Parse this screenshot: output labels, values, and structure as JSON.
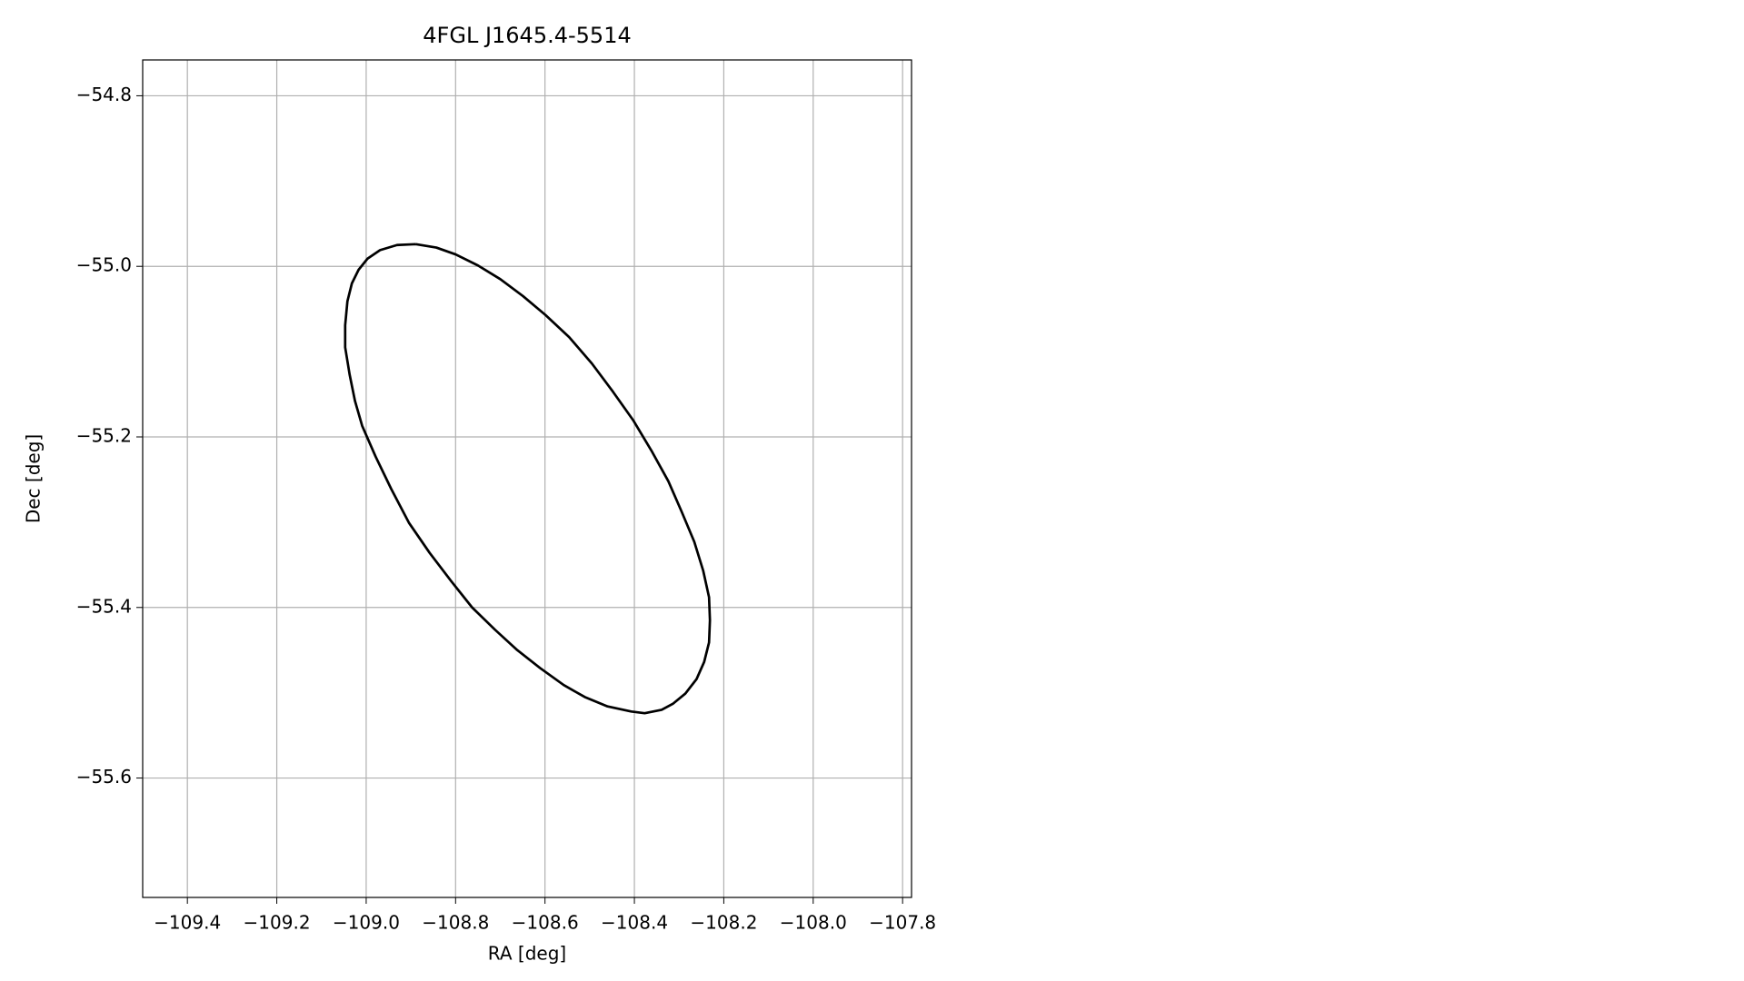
{
  "chart_data": {
    "type": "line",
    "title": "4FGL J1645.4-5514",
    "x_label": "RA [deg]",
    "y_label": "Dec [deg]",
    "grid": true,
    "xlim": [
      -109.5,
      -107.78
    ],
    "ylim": [
      -55.74,
      -54.758
    ],
    "xticks": [
      {
        "value": -109.4,
        "label": "−109.4"
      },
      {
        "value": -109.2,
        "label": "−109.2"
      },
      {
        "value": -109.0,
        "label": "−109.0"
      },
      {
        "value": -108.8,
        "label": "−108.8"
      },
      {
        "value": -108.6,
        "label": "−108.6"
      },
      {
        "value": -108.4,
        "label": "−108.4"
      },
      {
        "value": -108.2,
        "label": "−108.2"
      },
      {
        "value": -108.0,
        "label": "−108.0"
      },
      {
        "value": -107.8,
        "label": "−107.8"
      }
    ],
    "yticks": [
      {
        "value": -54.8,
        "label": "−54.8"
      },
      {
        "value": -55.0,
        "label": "−55.0"
      },
      {
        "value": -55.2,
        "label": "−55.2"
      },
      {
        "value": -55.4,
        "label": "−55.4"
      },
      {
        "value": -55.6,
        "label": "−55.6"
      }
    ],
    "series": [
      {
        "color": "#000000",
        "x": [
          -108.889,
          -108.843,
          -108.8,
          -108.75,
          -108.7,
          -108.649,
          -108.599,
          -108.546,
          -108.495,
          -108.448,
          -108.402,
          -108.362,
          -108.324,
          -108.294,
          -108.266,
          -108.246,
          -108.233,
          -108.231,
          -108.233,
          -108.244,
          -108.261,
          -108.286,
          -108.314,
          -108.339,
          -108.377,
          -108.407,
          -108.46,
          -108.511,
          -108.558,
          -108.611,
          -108.662,
          -108.712,
          -108.763,
          -108.81,
          -108.858,
          -108.904,
          -108.944,
          -108.979,
          -109.009,
          -109.025,
          -109.037,
          -109.047,
          -109.047,
          -109.042,
          -109.032,
          -109.017,
          -108.997,
          -108.969,
          -108.931,
          -108.889
        ],
        "values": [
          -54.974,
          -54.978,
          -54.986,
          -54.999,
          -55.015,
          -55.035,
          -55.057,
          -55.083,
          -55.114,
          -55.147,
          -55.181,
          -55.216,
          -55.252,
          -55.288,
          -55.323,
          -55.357,
          -55.388,
          -55.415,
          -55.441,
          -55.464,
          -55.484,
          -55.501,
          -55.513,
          -55.52,
          -55.524,
          -55.522,
          -55.516,
          -55.505,
          -55.491,
          -55.471,
          -55.45,
          -55.426,
          -55.4,
          -55.369,
          -55.336,
          -55.301,
          -55.261,
          -55.223,
          -55.187,
          -55.158,
          -55.127,
          -55.095,
          -55.069,
          -55.041,
          -55.02,
          -55.004,
          -54.991,
          -54.981,
          -54.975,
          -54.974
        ]
      }
    ]
  }
}
